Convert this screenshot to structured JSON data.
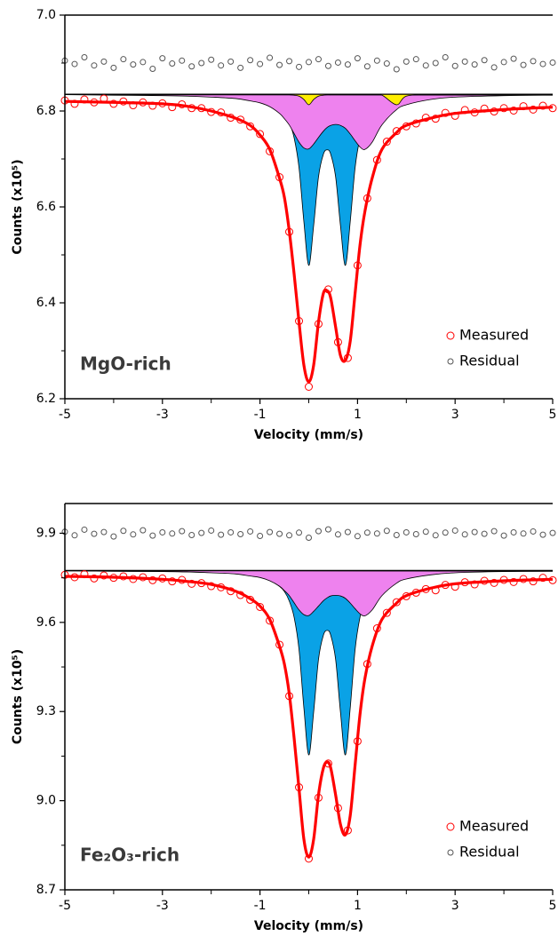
{
  "chart_data": [
    {
      "type": "scatter",
      "sample_label": "MgO-rich",
      "xlabel": "Velocity (mm/s)",
      "ylabel": "Counts (x10⁵)",
      "xlim": [
        -5,
        5
      ],
      "xticks": [
        -5,
        -3,
        -1,
        1,
        3,
        5
      ],
      "xminorticks": [
        -4,
        -2,
        0,
        2,
        4
      ],
      "ylim": [
        6.2,
        {
          "value": 7,
          "label": "7.0"
        }
      ],
      "yticks": [
        6.2,
        6.4,
        6.6,
        6.8,
        {
          "value": 7,
          "label": "7.0"
        }
      ],
      "yminorticks": [
        6.3,
        6.5,
        6.7,
        6.9
      ],
      "baseline": 6.835,
      "legend": "lower right",
      "x": [
        -5,
        -4.8,
        -4.6,
        -4.4,
        -4.2,
        -4,
        -3.8,
        -3.6,
        -3.4,
        -3.2,
        -3,
        -2.8,
        -2.6,
        -2.4,
        -2.2,
        -2,
        -1.8,
        -1.6,
        -1.4,
        -1.2,
        -1,
        -0.8,
        -0.6,
        -0.4,
        -0.2,
        0,
        0.2,
        0.4,
        0.6,
        0.8,
        1,
        1.2,
        1.4,
        1.6,
        1.8,
        2,
        2.2,
        2.4,
        2.6,
        2.8,
        3,
        3.2,
        3.4,
        3.6,
        3.8,
        4,
        4.2,
        4.4,
        4.6,
        4.8,
        5
      ],
      "curve_x": [
        -5,
        -4,
        -3,
        -2.5,
        -2,
        -1.5,
        -1.2,
        -1,
        -0.8,
        -0.6,
        -0.5,
        -0.4,
        -0.3,
        -0.2,
        -0.1,
        0,
        0.1,
        0.2,
        0.3,
        0.38,
        0.45,
        0.55,
        0.65,
        0.75,
        0.85,
        0.95,
        1.05,
        1.15,
        1.3,
        1.5,
        1.8,
        2,
        2.5,
        3,
        4,
        5
      ],
      "series": [
        {
          "mark": "area",
          "color": "#0aa2e6",
          "values": [
            6.834,
            6.834,
            6.833,
            6.832,
            6.831,
            6.829,
            6.826,
            6.822,
            6.816,
            6.804,
            6.794,
            6.776,
            6.744,
            6.682,
            6.569,
            6.478,
            6.561,
            6.663,
            6.71,
            6.719,
            6.71,
            6.663,
            6.561,
            6.478,
            6.569,
            6.682,
            6.744,
            6.776,
            6.8,
            6.814,
            6.823,
            6.826,
            6.83,
            6.832,
            6.833,
            6.834
          ]
        },
        {
          "mark": "area",
          "color": "#ee82ee",
          "values": [
            6.834,
            6.833,
            6.832,
            6.831,
            6.829,
            6.826,
            6.821,
            6.817,
            6.809,
            6.795,
            6.784,
            6.771,
            6.753,
            6.735,
            6.723,
            6.721,
            6.731,
            6.745,
            6.758,
            6.766,
            6.77,
            6.772,
            6.77,
            6.764,
            6.752,
            6.738,
            6.725,
            6.72,
            6.735,
            6.771,
            6.803,
            6.813,
            6.824,
            6.829,
            6.832,
            6.833
          ]
        },
        {
          "mark": "area",
          "color": "#ffee00",
          "values": [
            6.835,
            6.835,
            6.835,
            6.835,
            6.835,
            6.835,
            6.835,
            6.835,
            6.835,
            6.835,
            6.835,
            6.834,
            6.833,
            6.831,
            6.824,
            6.813,
            6.824,
            6.831,
            6.833,
            6.834,
            6.834,
            6.835,
            6.835,
            6.835,
            6.835,
            6.835,
            6.835,
            6.835,
            6.834,
            6.833,
            6.813,
            6.831,
            6.835,
            6.835,
            6.835,
            6.835
          ]
        },
        {
          "name": "Measured",
          "mark": "points",
          "color": "#ff0000",
          "values": [
            6.822,
            6.815,
            6.824,
            6.818,
            6.826,
            6.815,
            6.82,
            6.812,
            6.818,
            6.811,
            6.816,
            6.808,
            6.814,
            6.806,
            6.806,
            6.798,
            6.797,
            6.786,
            6.782,
            6.768,
            6.752,
            6.716,
            6.662,
            6.548,
            6.362,
            6.225,
            6.356,
            6.428,
            6.318,
            6.285,
            6.478,
            6.618,
            6.698,
            6.736,
            6.758,
            6.768,
            6.774,
            6.786,
            6.784,
            6.796,
            6.79,
            6.802,
            6.797,
            6.805,
            6.799,
            6.806,
            6.801,
            6.81,
            6.803,
            6.811,
            6.806
          ]
        },
        {
          "name": "Residual",
          "mark": "points",
          "color": "#555555",
          "values": [
            6.905,
            6.898,
            6.912,
            6.895,
            6.903,
            6.89,
            6.908,
            6.897,
            6.902,
            6.888,
            6.91,
            6.899,
            6.905,
            6.893,
            6.9,
            6.907,
            6.895,
            6.903,
            6.89,
            6.906,
            6.898,
            6.911,
            6.896,
            6.904,
            6.892,
            6.902,
            6.908,
            6.894,
            6.901,
            6.897,
            6.91,
            6.893,
            6.905,
            6.899,
            6.887,
            6.903,
            6.908,
            6.895,
            6.9,
            6.912,
            6.894,
            6.903,
            6.897,
            6.906,
            6.891,
            6.902,
            6.909,
            6.896,
            6.904,
            6.898,
            6.901
          ]
        },
        {
          "mark": "line",
          "color": "#ff0000",
          "values": [
            6.82,
            6.818,
            6.815,
            6.81,
            6.8,
            6.785,
            6.77,
            6.75,
            6.72,
            6.66,
            6.62,
            6.55,
            6.46,
            6.36,
            6.27,
            6.235,
            6.27,
            6.36,
            6.42,
            6.425,
            6.41,
            6.35,
            6.29,
            6.28,
            6.32,
            6.42,
            6.52,
            6.59,
            6.66,
            6.72,
            6.755,
            6.77,
            6.785,
            6.795,
            6.803,
            6.808
          ]
        }
      ]
    },
    {
      "type": "scatter",
      "sample_label": "Fe₂O₃-rich",
      "xlabel": "Velocity (mm/s)",
      "ylabel": "Counts (x10⁵)",
      "xlim": [
        -5,
        5
      ],
      "xticks": [
        -5,
        -3,
        -1,
        1,
        3,
        5
      ],
      "xminorticks": [
        -4,
        -2,
        0,
        2,
        4
      ],
      "ylim": [
        8.7,
        10
      ],
      "yticks": [
        8.7,
        {
          "value": 9,
          "label": "9.0"
        },
        9.3,
        9.6,
        9.9
      ],
      "yminorticks": [
        8.85,
        9.15,
        9.45,
        9.75
      ],
      "baseline": 9.775,
      "legend": "lower right",
      "x": [
        -5,
        -4.8,
        -4.6,
        -4.4,
        -4.2,
        -4,
        -3.8,
        -3.6,
        -3.4,
        -3.2,
        -3,
        -2.8,
        -2.6,
        -2.4,
        -2.2,
        -2,
        -1.8,
        -1.6,
        -1.4,
        -1.2,
        -1,
        -0.8,
        -0.6,
        -0.4,
        -0.2,
        0,
        0.2,
        0.4,
        0.6,
        0.8,
        1,
        1.2,
        1.4,
        1.6,
        1.8,
        2,
        2.2,
        2.4,
        2.6,
        2.8,
        3,
        3.2,
        3.4,
        3.6,
        3.8,
        4,
        4.2,
        4.4,
        4.6,
        4.8,
        5
      ],
      "curve_x": [
        -5,
        -4,
        -3,
        -2.5,
        -2,
        -1.5,
        -1.2,
        -1,
        -0.8,
        -0.6,
        -0.5,
        -0.4,
        -0.3,
        -0.2,
        -0.1,
        0,
        0.1,
        0.2,
        0.3,
        0.38,
        0.45,
        0.55,
        0.65,
        0.75,
        0.85,
        0.95,
        1.05,
        1.15,
        1.3,
        1.5,
        1.8,
        2,
        2.5,
        3,
        4,
        5
      ],
      "series": [
        {
          "mark": "area",
          "color": "#0aa2e6",
          "values": [
            9.773,
            9.773,
            9.772,
            9.77,
            9.768,
            9.765,
            9.759,
            9.752,
            9.742,
            9.721,
            9.704,
            9.672,
            9.617,
            9.509,
            9.312,
            9.154,
            9.298,
            9.476,
            9.557,
            9.573,
            9.557,
            9.476,
            9.298,
            9.154,
            9.312,
            9.509,
            9.617,
            9.672,
            9.714,
            9.738,
            9.754,
            9.759,
            9.766,
            9.77,
            9.772,
            9.773
          ]
        },
        {
          "mark": "area",
          "color": "#ee82ee",
          "values": [
            9.774,
            9.772,
            9.771,
            9.77,
            9.767,
            9.763,
            9.756,
            9.751,
            9.74,
            9.722,
            9.707,
            9.69,
            9.666,
            9.642,
            9.626,
            9.623,
            9.637,
            9.655,
            9.673,
            9.683,
            9.689,
            9.691,
            9.689,
            9.681,
            9.665,
            9.646,
            9.629,
            9.622,
            9.642,
            9.69,
            9.732,
            9.746,
            9.76,
            9.767,
            9.771,
            9.772
          ]
        },
        {
          "name": "Measured",
          "mark": "points",
          "color": "#ff0000",
          "values": [
            9.76,
            9.752,
            9.762,
            9.748,
            9.758,
            9.75,
            9.755,
            9.746,
            9.752,
            9.742,
            9.748,
            9.738,
            9.743,
            9.73,
            9.732,
            9.722,
            9.718,
            9.705,
            9.692,
            9.676,
            9.652,
            9.606,
            9.525,
            9.352,
            9.045,
            8.805,
            9.01,
            9.125,
            8.975,
            8.9,
            9.2,
            9.46,
            9.58,
            9.632,
            9.668,
            9.688,
            9.7,
            9.712,
            9.708,
            9.726,
            9.72,
            9.735,
            9.728,
            9.74,
            9.733,
            9.743,
            9.736,
            9.746,
            9.738,
            9.75,
            9.742
          ]
        },
        {
          "name": "Residual",
          "mark": "points",
          "color": "#555555",
          "values": [
            9.905,
            9.893,
            9.912,
            9.898,
            9.904,
            9.889,
            9.908,
            9.896,
            9.91,
            9.892,
            9.903,
            9.899,
            9.907,
            9.894,
            9.901,
            9.909,
            9.895,
            9.903,
            9.897,
            9.906,
            9.891,
            9.904,
            9.898,
            9.893,
            9.902,
            9.885,
            9.907,
            9.913,
            9.896,
            9.904,
            9.89,
            9.902,
            9.899,
            9.908,
            9.894,
            9.903,
            9.897,
            9.905,
            9.893,
            9.902,
            9.909,
            9.896,
            9.904,
            9.898,
            9.907,
            9.892,
            9.903,
            9.899,
            9.906,
            9.895,
            9.901
          ]
        },
        {
          "mark": "line",
          "color": "#ff0000",
          "values": [
            9.755,
            9.752,
            9.745,
            9.738,
            9.728,
            9.705,
            9.68,
            9.655,
            9.61,
            9.52,
            9.46,
            9.36,
            9.21,
            9.04,
            8.87,
            8.81,
            8.87,
            9.02,
            9.11,
            9.13,
            9.11,
            9.02,
            8.92,
            8.885,
            8.95,
            9.12,
            9.29,
            9.41,
            9.52,
            9.61,
            9.665,
            9.69,
            9.715,
            9.73,
            9.74,
            9.745
          ]
        }
      ]
    }
  ]
}
